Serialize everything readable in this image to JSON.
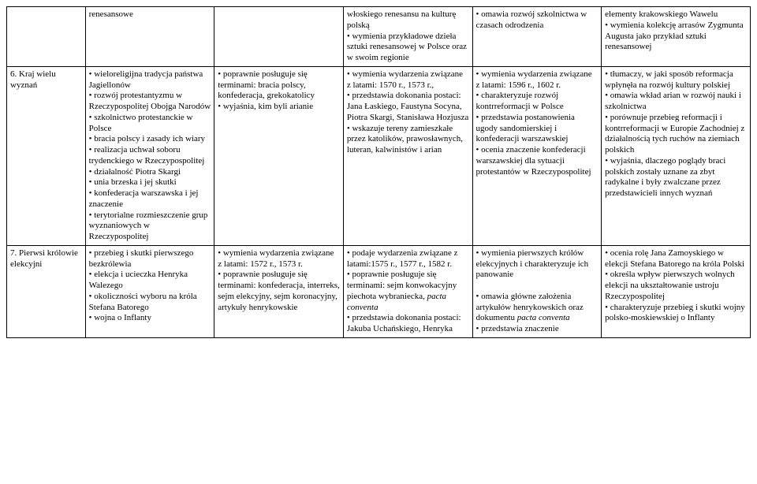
{
  "rows": [
    {
      "c0": "",
      "c1": "renesansowe",
      "c2": "",
      "c3": "włoskiego renesansu na kulturę polską\n• wymienia przykładowe dzieła sztuki renesansowej w Polsce oraz w swoim regionie",
      "c4": "• omawia rozwój szkolnictwa w czasach odrodzenia",
      "c5": "elementy krakowskiego Wawelu\n• wymienia kolekcję arrasów Zygmunta Augusta jako przykład sztuki renesansowej"
    },
    {
      "c0": "6. Kraj wielu wyznań",
      "c1": "• wieloreligijna tradycja państwa Jagiellonów\n• rozwój protestantyzmu w Rzeczypospolitej Obojga Narodów\n• szkolnictwo protestanckie w Polsce\n• bracia polscy i zasady ich wiary\n• realizacja uchwał soboru trydenckiego w Rzeczypospolitej\n• działalność Piotra Skargi\n• unia brzeska i jej skutki\n• konfederacja warszawska i jej znaczenie\n• terytorialne rozmieszczenie grup wyznaniowych w Rzeczypospolitej",
      "c2": "• poprawnie posługuje się terminami: bracia polscy, konfederacja, grekokatolicy\n• wyjaśnia, kim byli arianie",
      "c3": "• wymienia wydarzenia związane z latami: 1570 r., 1573 r.,\n• przedstawia dokonania postaci: Jana Łaskiego, Faustyna Socyna, Piotra Skargi, Stanisława Hozjusza\n• wskazuje tereny zamieszkałe przez katolików, prawosławnych, luteran, kalwinistów i arian",
      "c4": "• wymienia wydarzenia związane z latami: 1596 r., 1602 r.\n• charakteryzuje rozwój kontrreformacji w Polsce\n• przedstawia postanowienia ugody sandomierskiej i konfederacji warszawskiej\n• ocenia znaczenie konfederacji warszawskiej dla sytuacji protestantów w Rzeczypospolitej",
      "c5": "• tłumaczy, w jaki sposób reformacja wpłynęła na rozwój kultury polskiej\n• omawia wkład arian w rozwój nauki i szkolnictwa\n• porównuje przebieg reformacji i kontrreformacji w Europie Zachodniej z działalnością tych ruchów na ziemiach polskich\n• wyjaśnia, dlaczego poglądy braci polskich zostały uznane za zbyt radykalne i były zwalczane przez przedstawicieli innych wyznań"
    },
    {
      "c0": "7. Pierwsi królowie elekcyjni",
      "c1": "• przebieg i skutki pierwszego bezkrólewia\n• elekcja i ucieczka Henryka Walezego\n• okoliczności wyboru na króla Stefana Batorego\n• wojna o Inflanty",
      "c2": "• wymienia wydarzenia związane z latami: 1572 r., 1573 r.\n• poprawnie posługuje się terminami: konfederacja, interreks, sejm elekcyjny, sejm koronacyjny, artykuły henrykowskie",
      "c3_html": "• podaje wydarzenia związane z latami:1575 r., 1577 r., 1582 r.<br>• poprawnie posługuje się terminami: sejm konwokacyjny piechota wybraniecka, <span class=\"it\">pacta conventa</span><br>• przedstawia dokonania postaci: Jakuba Uchańskiego, Henryka",
      "c4_html": "• wymienia pierwszych królów elekcyjnych i charakteryzuje ich panowanie<br><br>• omawia główne założenia artykułów henrykowskich oraz dokumentu <span class=\"it\">pacta conventa</span><br>• przedstawia znaczenie",
      "c5": "• ocenia rolę Jana Zamoyskiego w elekcji Stefana Batorego na króla Polski\n• określa wpływ pierwszych wolnych elekcji  na ukształtowanie ustroju Rzeczypospolitej\n• charakteryzuje przebieg i skutki wojny polsko-moskiewskiej o Inflanty"
    }
  ]
}
